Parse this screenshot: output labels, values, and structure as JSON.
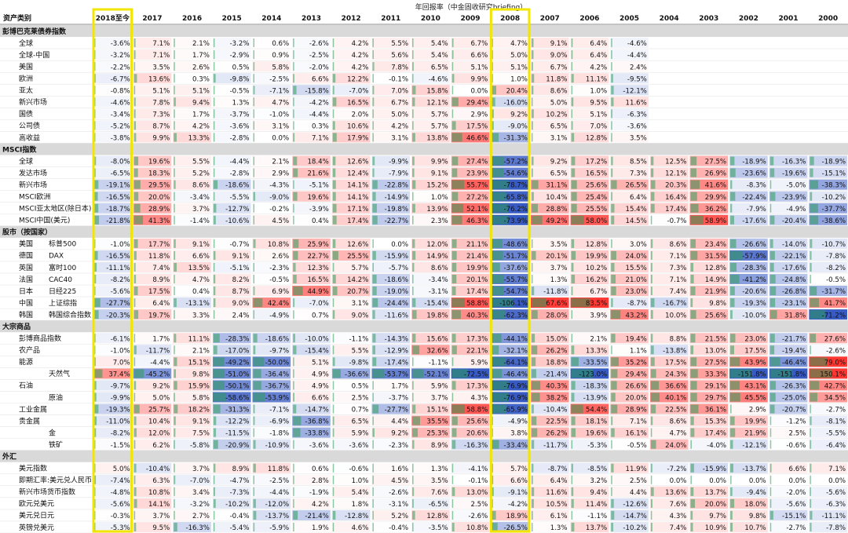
{
  "header": {
    "top_title": "年回报率（中金固收研究briefing）",
    "category_label": "资产类别"
  },
  "highlight_color": "#f2e600",
  "colors": {
    "positive": "#e8303a",
    "negative": "#2f5fb0",
    "bar": "#2e9d5b",
    "section_bg": "#d9d9d9"
  },
  "chart_data": {
    "type": "heatmap",
    "columns": [
      "2018至今",
      "2017",
      "2016",
      "2015",
      "2014",
      "2013",
      "2012",
      "2011",
      "2010",
      "2009",
      "2008",
      "2007",
      "2006",
      "2005",
      "2004",
      "2003",
      "2002",
      "2001",
      "2000"
    ],
    "highlighted_columns": [
      "2018至今",
      "2008"
    ],
    "rows": [
      {
        "section": "彭博巴克莱债券指数"
      },
      {
        "l1": "全球",
        "l2": "",
        "values": [
          -3.6,
          7.1,
          2.1,
          -3.2,
          0.6,
          -2.6,
          4.2,
          5.5,
          5.4,
          6.7,
          4.7,
          9.1,
          6.4,
          -4.6,
          null,
          null,
          null,
          null,
          null
        ]
      },
      {
        "l1": "全球-中国",
        "l2": "",
        "values": [
          -3.2,
          7.1,
          1.7,
          -2.9,
          0.9,
          -2.5,
          4.2,
          5.6,
          5.4,
          6.6,
          5.0,
          9.0,
          6.4,
          -4.4,
          null,
          null,
          null,
          null,
          null
        ]
      },
      {
        "l1": "美国",
        "l2": "",
        "values": [
          -2.2,
          3.5,
          2.6,
          0.5,
          5.8,
          -2.0,
          4.2,
          7.8,
          6.5,
          5.1,
          5.1,
          6.7,
          4.2,
          2.4,
          null,
          null,
          null,
          null,
          null
        ]
      },
      {
        "l1": "欧洲",
        "l2": "",
        "values": [
          -6.7,
          13.6,
          0.3,
          -9.8,
          -2.5,
          6.6,
          12.2,
          -0.1,
          -4.6,
          9.9,
          1.0,
          11.8,
          11.1,
          -9.5,
          null,
          null,
          null,
          null,
          null
        ]
      },
      {
        "l1": "亚太",
        "l2": "",
        "values": [
          -0.8,
          5.1,
          5.1,
          -0.5,
          -7.1,
          -15.8,
          -7.0,
          7.0,
          15.8,
          0.0,
          20.4,
          8.6,
          1.0,
          -12.1,
          null,
          null,
          null,
          null,
          null
        ]
      },
      {
        "l1": "新兴市场",
        "l2": "",
        "values": [
          -4.6,
          7.8,
          9.4,
          1.3,
          4.7,
          -4.2,
          16.5,
          6.7,
          12.1,
          29.4,
          -16.0,
          5.0,
          9.5,
          11.6,
          null,
          null,
          null,
          null,
          null
        ]
      },
      {
        "l1": "国债",
        "l2": "",
        "values": [
          -3.4,
          7.3,
          1.7,
          -3.7,
          -1.0,
          -4.4,
          2.0,
          5.0,
          5.7,
          2.9,
          9.2,
          10.2,
          5.1,
          -6.3,
          null,
          null,
          null,
          null,
          null
        ]
      },
      {
        "l1": "公司债",
        "l2": "",
        "values": [
          -5.2,
          8.7,
          4.2,
          -3.6,
          3.1,
          0.3,
          10.6,
          4.2,
          5.7,
          17.5,
          -9.0,
          6.5,
          7.0,
          -3.6,
          null,
          null,
          null,
          null,
          null
        ]
      },
      {
        "l1": "高收益",
        "l2": "",
        "values": [
          -3.8,
          9.9,
          13.3,
          -2.8,
          0.0,
          7.1,
          17.9,
          3.1,
          13.8,
          46.6,
          -31.3,
          3.1,
          12.8,
          3.5,
          null,
          null,
          null,
          null,
          null
        ]
      },
      {
        "section": "MSCI指数"
      },
      {
        "l1": "全球",
        "l2": "",
        "values": [
          -8.0,
          19.6,
          5.5,
          -4.4,
          2.1,
          18.4,
          12.6,
          -9.9,
          9.9,
          27.4,
          -57.2,
          9.2,
          17.2,
          8.5,
          12.5,
          27.5,
          -18.9,
          -16.3,
          -18.9
        ]
      },
      {
        "l1": "发达市场",
        "l2": "",
        "values": [
          -6.5,
          18.3,
          5.2,
          -2.8,
          2.9,
          21.6,
          12.4,
          -7.9,
          9.1,
          23.9,
          -54.6,
          6.5,
          16.5,
          7.3,
          12.1,
          26.9,
          -23.6,
          -19.6,
          -15.1
        ]
      },
      {
        "l1": "新兴市场",
        "l2": "",
        "values": [
          -19.1,
          29.5,
          8.6,
          -18.6,
          -4.3,
          -5.1,
          14.1,
          -22.8,
          15.2,
          55.7,
          -78.7,
          31.1,
          25.6,
          26.5,
          20.3,
          41.6,
          -8.3,
          -5.0,
          -38.3
        ]
      },
      {
        "l1": "MSCI欧洲",
        "l2": "",
        "values": [
          -16.5,
          20.0,
          -3.4,
          -5.5,
          -9.0,
          19.6,
          14.1,
          -14.9,
          1.0,
          27.2,
          -65.8,
          10.4,
          25.4,
          6.4,
          16.4,
          29.9,
          -22.4,
          -23.9,
          -10.2
        ]
      },
      {
        "l1": "MSCI亚太地区(除日本)",
        "l2": "",
        "values": [
          -18.7,
          28.9,
          3.7,
          -12.7,
          -0.2,
          -3.9,
          17.1,
          -19.8,
          13.9,
          52.1,
          -76.2,
          28.8,
          25.5,
          15.4,
          17.4,
          36.2,
          -7.9,
          -4.9,
          -37.7
        ]
      },
      {
        "l1": "MSCI中国(美元)",
        "l2": "",
        "values": [
          -21.8,
          41.3,
          -1.4,
          -10.6,
          4.5,
          0.4,
          17.4,
          -22.7,
          2.3,
          46.3,
          -73.9,
          49.2,
          58.0,
          14.5,
          -0.7,
          58.9,
          -17.6,
          -20.4,
          -38.6
        ]
      },
      {
        "section": "股市（按国家）"
      },
      {
        "l1": "美国",
        "l2": "标普500",
        "values": [
          -1.0,
          17.7,
          9.1,
          -0.7,
          10.8,
          25.9,
          12.6,
          0.0,
          12.0,
          21.1,
          -48.6,
          3.5,
          12.8,
          3.0,
          8.6,
          23.4,
          -26.6,
          -14.0,
          -10.7
        ]
      },
      {
        "l1": "德国",
        "l2": "DAX",
        "values": [
          -16.5,
          11.8,
          6.6,
          9.1,
          2.6,
          22.7,
          25.5,
          -15.9,
          14.9,
          21.4,
          -51.7,
          20.1,
          19.9,
          24.0,
          7.1,
          31.5,
          -57.9,
          -22.1,
          -7.8
        ]
      },
      {
        "l1": "英国",
        "l2": "富时100",
        "values": [
          -11.1,
          7.4,
          13.5,
          -5.1,
          -2.3,
          12.3,
          5.7,
          -5.7,
          8.6,
          19.9,
          -37.6,
          3.7,
          10.2,
          15.5,
          7.3,
          12.8,
          -28.3,
          -17.6,
          -8.2
        ]
      },
      {
        "l1": "法国",
        "l2": "CAC40",
        "values": [
          -8.2,
          8.9,
          4.7,
          8.2,
          -0.5,
          16.5,
          14.2,
          -18.6,
          -3.4,
          20.1,
          -55.7,
          1.3,
          16.2,
          21.0,
          7.1,
          14.9,
          -41.2,
          -24.8,
          -0.5
        ]
      },
      {
        "l1": "日本",
        "l2": "日经225",
        "values": [
          -5.6,
          17.5,
          0.4,
          8.7,
          6.9,
          44.9,
          20.7,
          -19.0,
          -3.1,
          17.4,
          -54.7,
          -11.8,
          6.7,
          23.0,
          7.4,
          21.9,
          -20.6,
          -26.8,
          -31.7
        ]
      },
      {
        "l1": "中国",
        "l2": "上证综指",
        "values": [
          -27.7,
          6.4,
          -13.1,
          9.0,
          42.4,
          -7.0,
          3.1,
          -24.4,
          -15.4,
          58.8,
          -106.1,
          67.6,
          83.5,
          -8.7,
          -16.7,
          9.8,
          -19.3,
          -23.1,
          41.7
        ]
      },
      {
        "l1": "韩国",
        "l2": "韩国综合指数",
        "values": [
          -20.3,
          19.7,
          3.3,
          2.4,
          -4.9,
          0.7,
          9.0,
          -11.6,
          19.8,
          40.3,
          -62.3,
          28.0,
          3.9,
          43.2,
          10.0,
          25.6,
          -10.0,
          31.8,
          -71.2
        ]
      },
      {
        "section": "大宗商品"
      },
      {
        "l1": "彭博商品指数",
        "l2": "",
        "values": [
          -6.1,
          1.7,
          11.1,
          -28.3,
          -18.6,
          -10.0,
          -1.1,
          -14.3,
          15.6,
          17.3,
          -44.1,
          15.0,
          2.1,
          19.4,
          8.8,
          21.5,
          23.0,
          -21.7,
          27.6
        ]
      },
      {
        "l1": "农产品",
        "l2": "",
        "values": [
          -1.0,
          -11.7,
          2.1,
          -17.0,
          -9.7,
          -15.4,
          5.5,
          -12.9,
          32.6,
          22.1,
          -32.1,
          26.2,
          13.3,
          1.1,
          -13.8,
          13.0,
          17.5,
          -19.4,
          -2.6
        ]
      },
      {
        "l1": "能源",
        "l2": "",
        "values": [
          7.0,
          -4.4,
          15.1,
          -49.2,
          -50.0,
          5.1,
          -9.8,
          -17.4,
          -1.1,
          5.9,
          -64.1,
          18.8,
          -33.5,
          35.2,
          17.5,
          27.5,
          43.9,
          -46.4,
          79.0
        ]
      },
      {
        "l1": "",
        "l2": "天然气",
        "values": [
          37.4,
          -45.2,
          9.8,
          -51.0,
          -36.4,
          4.9,
          -36.6,
          -53.7,
          -52.1,
          -72.5,
          -46.4,
          -21.4,
          -123.0,
          29.4,
          24.3,
          33.3,
          -151.8,
          -151.8,
          150.1
        ]
      },
      {
        "l1": "石油",
        "l2": "",
        "values": [
          -9.7,
          9.2,
          15.9,
          -50.1,
          -36.7,
          4.9,
          0.5,
          1.7,
          5.9,
          17.3,
          -76.9,
          40.3,
          -18.3,
          26.6,
          36.6,
          29.1,
          43.1,
          -26.3,
          42.7
        ]
      },
      {
        "l1": "",
        "l2": "原油",
        "values": [
          -9.9,
          5.0,
          5.8,
          -58.6,
          -53.9,
          6.6,
          2.5,
          -3.7,
          3.7,
          4.3,
          -76.9,
          38.2,
          -13.9,
          20.0,
          40.1,
          29.7,
          45.5,
          -25.0,
          34.5
        ]
      },
      {
        "l1": "工业金属",
        "l2": "",
        "values": [
          -19.3,
          25.7,
          18.2,
          -31.3,
          -7.1,
          -14.7,
          0.7,
          -27.7,
          15.1,
          58.8,
          -65.9,
          -10.4,
          54.4,
          28.9,
          22.5,
          36.1,
          2.9,
          -20.7,
          -2.7
        ]
      },
      {
        "l1": "贵金属",
        "l2": "",
        "values": [
          -11.0,
          10.4,
          9.1,
          -12.2,
          -6.9,
          -36.8,
          6.5,
          4.4,
          35.5,
          25.6,
          -4.9,
          22.5,
          18.1,
          7.1,
          8.6,
          15.3,
          19.9,
          -1.2,
          -8.1
        ]
      },
      {
        "l1": "",
        "l2": "金",
        "values": [
          -8.2,
          12.0,
          7.5,
          -11.5,
          -1.8,
          -33.8,
          5.9,
          9.2,
          25.3,
          20.6,
          3.8,
          26.2,
          19.6,
          16.1,
          4.7,
          17.4,
          21.9,
          2.5,
          -5.5
        ]
      },
      {
        "l1": "",
        "l2": "铁矿",
        "values": [
          -1.5,
          6.2,
          -5.8,
          -20.9,
          -10.9,
          -3.6,
          -3.6,
          -2.3,
          8.9,
          -16.3,
          -33.4,
          -11.7,
          -5.3,
          -0.5,
          24.0,
          -4.0,
          -12.1,
          -0.6,
          -6.4
        ]
      },
      {
        "section": "外汇"
      },
      {
        "l1": "美元指数",
        "l2": "",
        "values": [
          5.0,
          -10.4,
          3.7,
          8.9,
          11.8,
          0.6,
          -0.6,
          1.6,
          1.3,
          -4.1,
          5.7,
          -8.7,
          -8.5,
          11.9,
          -7.2,
          -15.9,
          -13.7,
          6.6,
          7.1
        ]
      },
      {
        "l1": "即期汇率:美元兑人民币",
        "l2": "",
        "values": [
          -7.4,
          6.3,
          -7.0,
          -4.7,
          -2.5,
          2.8,
          1.0,
          4.5,
          3.5,
          -0.1,
          6.6,
          6.4,
          3.2,
          2.5,
          0.0,
          0.0,
          0.0,
          0.0,
          0.0
        ]
      },
      {
        "l1": "新兴市场货币指数",
        "l2": "",
        "values": [
          -4.8,
          10.8,
          3.4,
          -7.3,
          -4.4,
          -1.9,
          5.4,
          -2.6,
          7.6,
          13.0,
          -9.1,
          11.6,
          9.4,
          4.4,
          13.6,
          13.7,
          -9.4,
          -2.0,
          -5.6
        ]
      },
      {
        "l1": "欧元兑美元",
        "l2": "",
        "values": [
          -5.6,
          14.1,
          -3.2,
          -10.2,
          -12.0,
          4.2,
          1.8,
          -3.1,
          -6.5,
          2.5,
          -4.2,
          10.5,
          11.4,
          -12.6,
          7.6,
          20.0,
          18.0,
          -5.6,
          -6.3
        ]
      },
      {
        "l1": "美元兑日元",
        "l2": "",
        "values": [
          -0.3,
          3.7,
          2.7,
          -0.4,
          -13.7,
          -21.4,
          -12.8,
          5.2,
          12.8,
          -2.6,
          18.9,
          6.1,
          -1.1,
          -14.7,
          4.3,
          9.7,
          9.8,
          -15.1,
          -11.1
        ]
      },
      {
        "l1": "英镑兑美元",
        "l2": "",
        "values": [
          -5.3,
          9.5,
          -16.3,
          -5.4,
          -5.9,
          1.9,
          4.6,
          -0.4,
          -3.5,
          10.8,
          -26.5,
          1.3,
          13.7,
          -10.2,
          7.4,
          10.9,
          10.7,
          -2.7,
          -7.8
        ]
      }
    ]
  }
}
